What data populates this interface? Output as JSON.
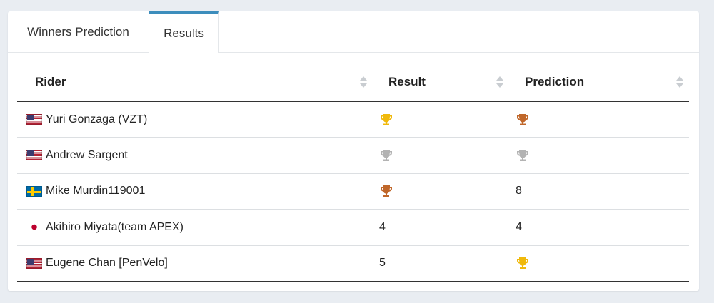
{
  "tabs": [
    {
      "label": "Winners Prediction",
      "active": false
    },
    {
      "label": "Results",
      "active": true
    }
  ],
  "table": {
    "headers": [
      "Rider",
      "Result",
      "Prediction"
    ],
    "rows": [
      {
        "flag": "us",
        "rider": "Yuri Gonzaga (VZT)",
        "result": "trophy-gold",
        "prediction": "trophy-bronze"
      },
      {
        "flag": "us",
        "rider": "Andrew Sargent",
        "result": "trophy-silver",
        "prediction": "trophy-silver"
      },
      {
        "flag": "se",
        "rider": "Mike Murdin119001",
        "result": "trophy-bronze",
        "prediction": "8"
      },
      {
        "flag": "jp",
        "rider": "Akihiro Miyata(team APEX)",
        "result": "4",
        "prediction": "4"
      },
      {
        "flag": "us",
        "rider": "Eugene Chan [PenVelo]",
        "result": "5",
        "prediction": "trophy-gold"
      }
    ]
  },
  "colors": {
    "accent": "#3c8dbc",
    "trophy_gold": "#f0b90b",
    "trophy_silver": "#b3b3b3",
    "trophy_bronze": "#c0672a"
  }
}
